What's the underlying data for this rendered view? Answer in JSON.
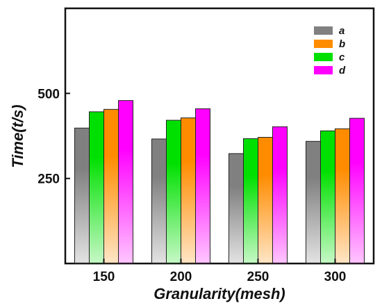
{
  "chart_data": {
    "type": "bar",
    "categories": [
      "150",
      "200",
      "250",
      "300"
    ],
    "series": [
      {
        "name": "a",
        "values": [
          398,
          366,
          323,
          359
        ],
        "color": "#808080"
      },
      {
        "name": "c",
        "values": [
          446,
          421,
          367,
          390
        ],
        "color": "#00e000"
      },
      {
        "name": "b",
        "values": [
          453,
          428,
          371,
          396
        ],
        "color": "#ff8c00"
      },
      {
        "name": "d",
        "values": [
          479,
          455,
          402,
          427
        ],
        "color": "#ff00ff"
      }
    ],
    "legend_order": [
      "a",
      "b",
      "c",
      "d"
    ],
    "legend_position": "top-right",
    "xlabel": "Granularity(mesh)",
    "ylabel": "Time(t/s)",
    "yticks": [
      250,
      500
    ],
    "ylim": [
      0,
      750
    ],
    "grid": false
  }
}
